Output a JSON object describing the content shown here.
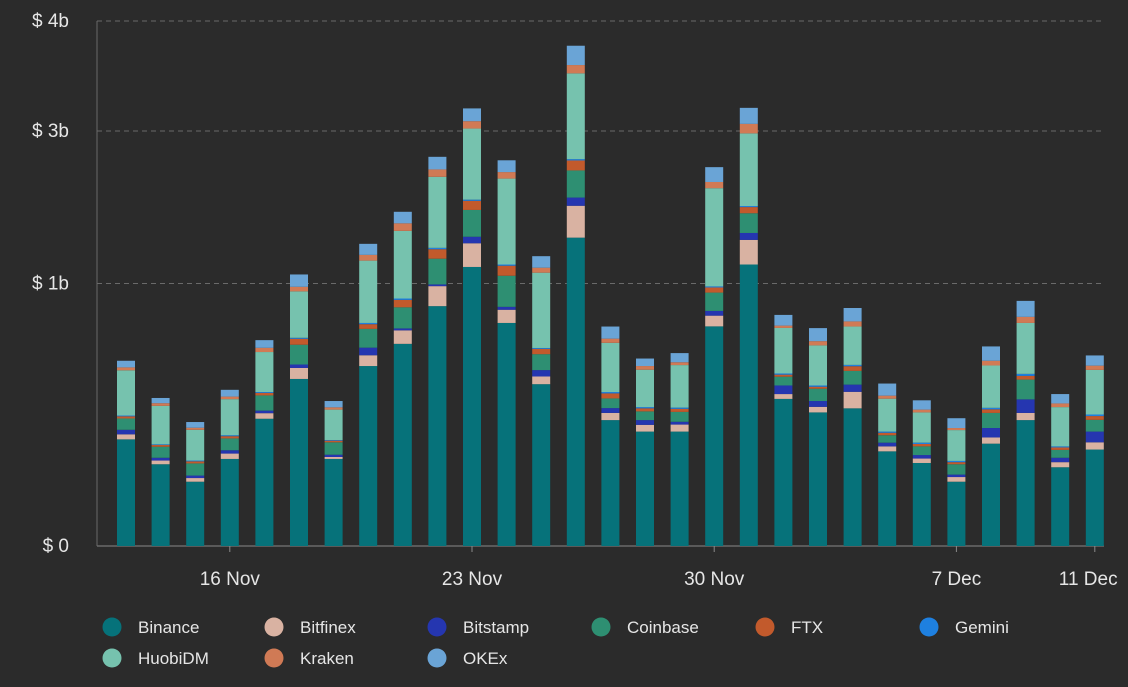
{
  "chart_data": {
    "type": "bar",
    "stacked": true,
    "y_scale": "sqrt",
    "ylim": [
      0,
      4000000000
    ],
    "y_ticks": [
      {
        "value": 0,
        "label": "$ 0"
      },
      {
        "value": 1000000000,
        "label": "$ 1b"
      },
      {
        "value": 2500000000,
        "label": "$ 3b"
      },
      {
        "value": 4000000000,
        "label": "$ 4b"
      }
    ],
    "x_ticks": [
      {
        "date": "2020-11-16",
        "label": "16 Nov"
      },
      {
        "date": "2020-11-23",
        "label": "23 Nov"
      },
      {
        "date": "2020-11-30",
        "label": "30 Nov"
      },
      {
        "date": "2020-12-07",
        "label": "7 Dec"
      },
      {
        "date": "2020-12-11",
        "label": "11 Dec"
      }
    ],
    "grid": "horizontal",
    "legend_position": "bottom",
    "categories": [
      "2020-11-13",
      "2020-11-14",
      "2020-11-15",
      "2020-11-16",
      "2020-11-17",
      "2020-11-18",
      "2020-11-19",
      "2020-11-20",
      "2020-11-21",
      "2020-11-22",
      "2020-11-23",
      "2020-11-24",
      "2020-11-25",
      "2020-11-26",
      "2020-11-27",
      "2020-11-28",
      "2020-11-29",
      "2020-11-30",
      "2020-12-01",
      "2020-12-02",
      "2020-12-03",
      "2020-12-04",
      "2020-12-05",
      "2020-12-06",
      "2020-12-07",
      "2020-12-08",
      "2020-12-09",
      "2020-12-10",
      "2020-12-11"
    ],
    "series": [
      {
        "name": "Binance",
        "color": "#06727a",
        "values": [
          165000000,
          97000000,
          60000000,
          110000000,
          235000000,
          405000000,
          110000000,
          470000000,
          593000000,
          835000000,
          1130000000,
          722000000,
          380000000,
          1380000000,
          230000000,
          190000000,
          190000000,
          700000000,
          1150000000,
          314000000,
          259000000,
          275000000,
          130000000,
          100000000,
          60000000,
          152000000,
          230000000,
          90000000,
          135000000
        ]
      },
      {
        "name": "Bitfinex",
        "color": "#d9b2a2",
        "values": [
          16000000,
          9000000,
          7000000,
          14000000,
          21000000,
          55000000,
          5000000,
          58000000,
          82000000,
          145000000,
          200000000,
          88000000,
          37000000,
          300000000,
          27000000,
          23000000,
          24000000,
          70000000,
          210000000,
          21000000,
          22000000,
          70000000,
          14000000,
          11000000,
          9000000,
          19000000,
          27000000,
          12000000,
          21000000
        ]
      },
      {
        "name": "Bitstamp",
        "color": "#2536b0",
        "values": [
          15000000,
          7000000,
          5000000,
          9000000,
          10000000,
          18000000,
          6000000,
          43000000,
          12000000,
          13000000,
          58000000,
          20000000,
          32000000,
          82000000,
          19000000,
          17000000,
          10000000,
          32000000,
          62000000,
          39000000,
          24000000,
          33000000,
          11000000,
          9000000,
          5000000,
          31000000,
          55000000,
          11000000,
          34000000
        ]
      },
      {
        "name": "Coinbase",
        "color": "#2e8f72",
        "values": [
          40000000,
          30000000,
          27000000,
          35000000,
          63000000,
          110000000,
          35000000,
          113000000,
          140000000,
          205000000,
          251000000,
          230000000,
          85000000,
          285000000,
          40000000,
          33000000,
          37000000,
          130000000,
          185000000,
          42000000,
          54000000,
          67000000,
          23000000,
          24000000,
          23000000,
          55000000,
          90000000,
          21000000,
          41000000
        ]
      },
      {
        "name": "FTX",
        "color": "#c25a2c",
        "values": [
          8000000,
          5000000,
          5000000,
          7000000,
          11000000,
          35000000,
          5000000,
          30000000,
          52000000,
          80000000,
          90000000,
          80000000,
          30000000,
          110000000,
          22000000,
          12000000,
          12000000,
          38000000,
          60000000,
          10000000,
          9000000,
          24000000,
          8000000,
          7000000,
          5000000,
          14000000,
          18000000,
          7000000,
          14000000
        ]
      },
      {
        "name": "Gemini",
        "color": "#1e80e0",
        "values": [
          3000000,
          2000000,
          2000000,
          3000000,
          4000000,
          6000000,
          2000000,
          8000000,
          10000000,
          12000000,
          12000000,
          10000000,
          5000000,
          15000000,
          6000000,
          5000000,
          5000000,
          8000000,
          10000000,
          6000000,
          6000000,
          7000000,
          4000000,
          4000000,
          3000000,
          6000000,
          10000000,
          3000000,
          6000000
        ]
      },
      {
        "name": "HuobiDM",
        "color": "#76c2ae",
        "values": [
          201000000,
          135000000,
          90000000,
          135000000,
          202000000,
          312000000,
          107000000,
          460000000,
          552000000,
          688000000,
          788000000,
          809000000,
          515000000,
          1070000000,
          255000000,
          171000000,
          197000000,
          880000000,
          794000000,
          258000000,
          210000000,
          223000000,
          125000000,
          104000000,
          90000000,
          196000000,
          292000000,
          136000000,
          199000000
        ]
      },
      {
        "name": "Kraken",
        "color": "#d07a55",
        "values": [
          15000000,
          11000000,
          7000000,
          11000000,
          24000000,
          34000000,
          9000000,
          48000000,
          70000000,
          80000000,
          90000000,
          70000000,
          40000000,
          115000000,
          25000000,
          19000000,
          15000000,
          65000000,
          115000000,
          15000000,
          25000000,
          33000000,
          13000000,
          11000000,
          7000000,
          25000000,
          40000000,
          15000000,
          22000000
        ]
      },
      {
        "name": "OKEx",
        "color": "#6aa4d6",
        "values": [
          35000000,
          22000000,
          20000000,
          30000000,
          45000000,
          95000000,
          26000000,
          95000000,
          110000000,
          140000000,
          160000000,
          130000000,
          95000000,
          275000000,
          75000000,
          40000000,
          50000000,
          160000000,
          200000000,
          70000000,
          80000000,
          90000000,
          55000000,
          38000000,
          35000000,
          80000000,
          110000000,
          40000000,
          55000000
        ]
      }
    ]
  }
}
